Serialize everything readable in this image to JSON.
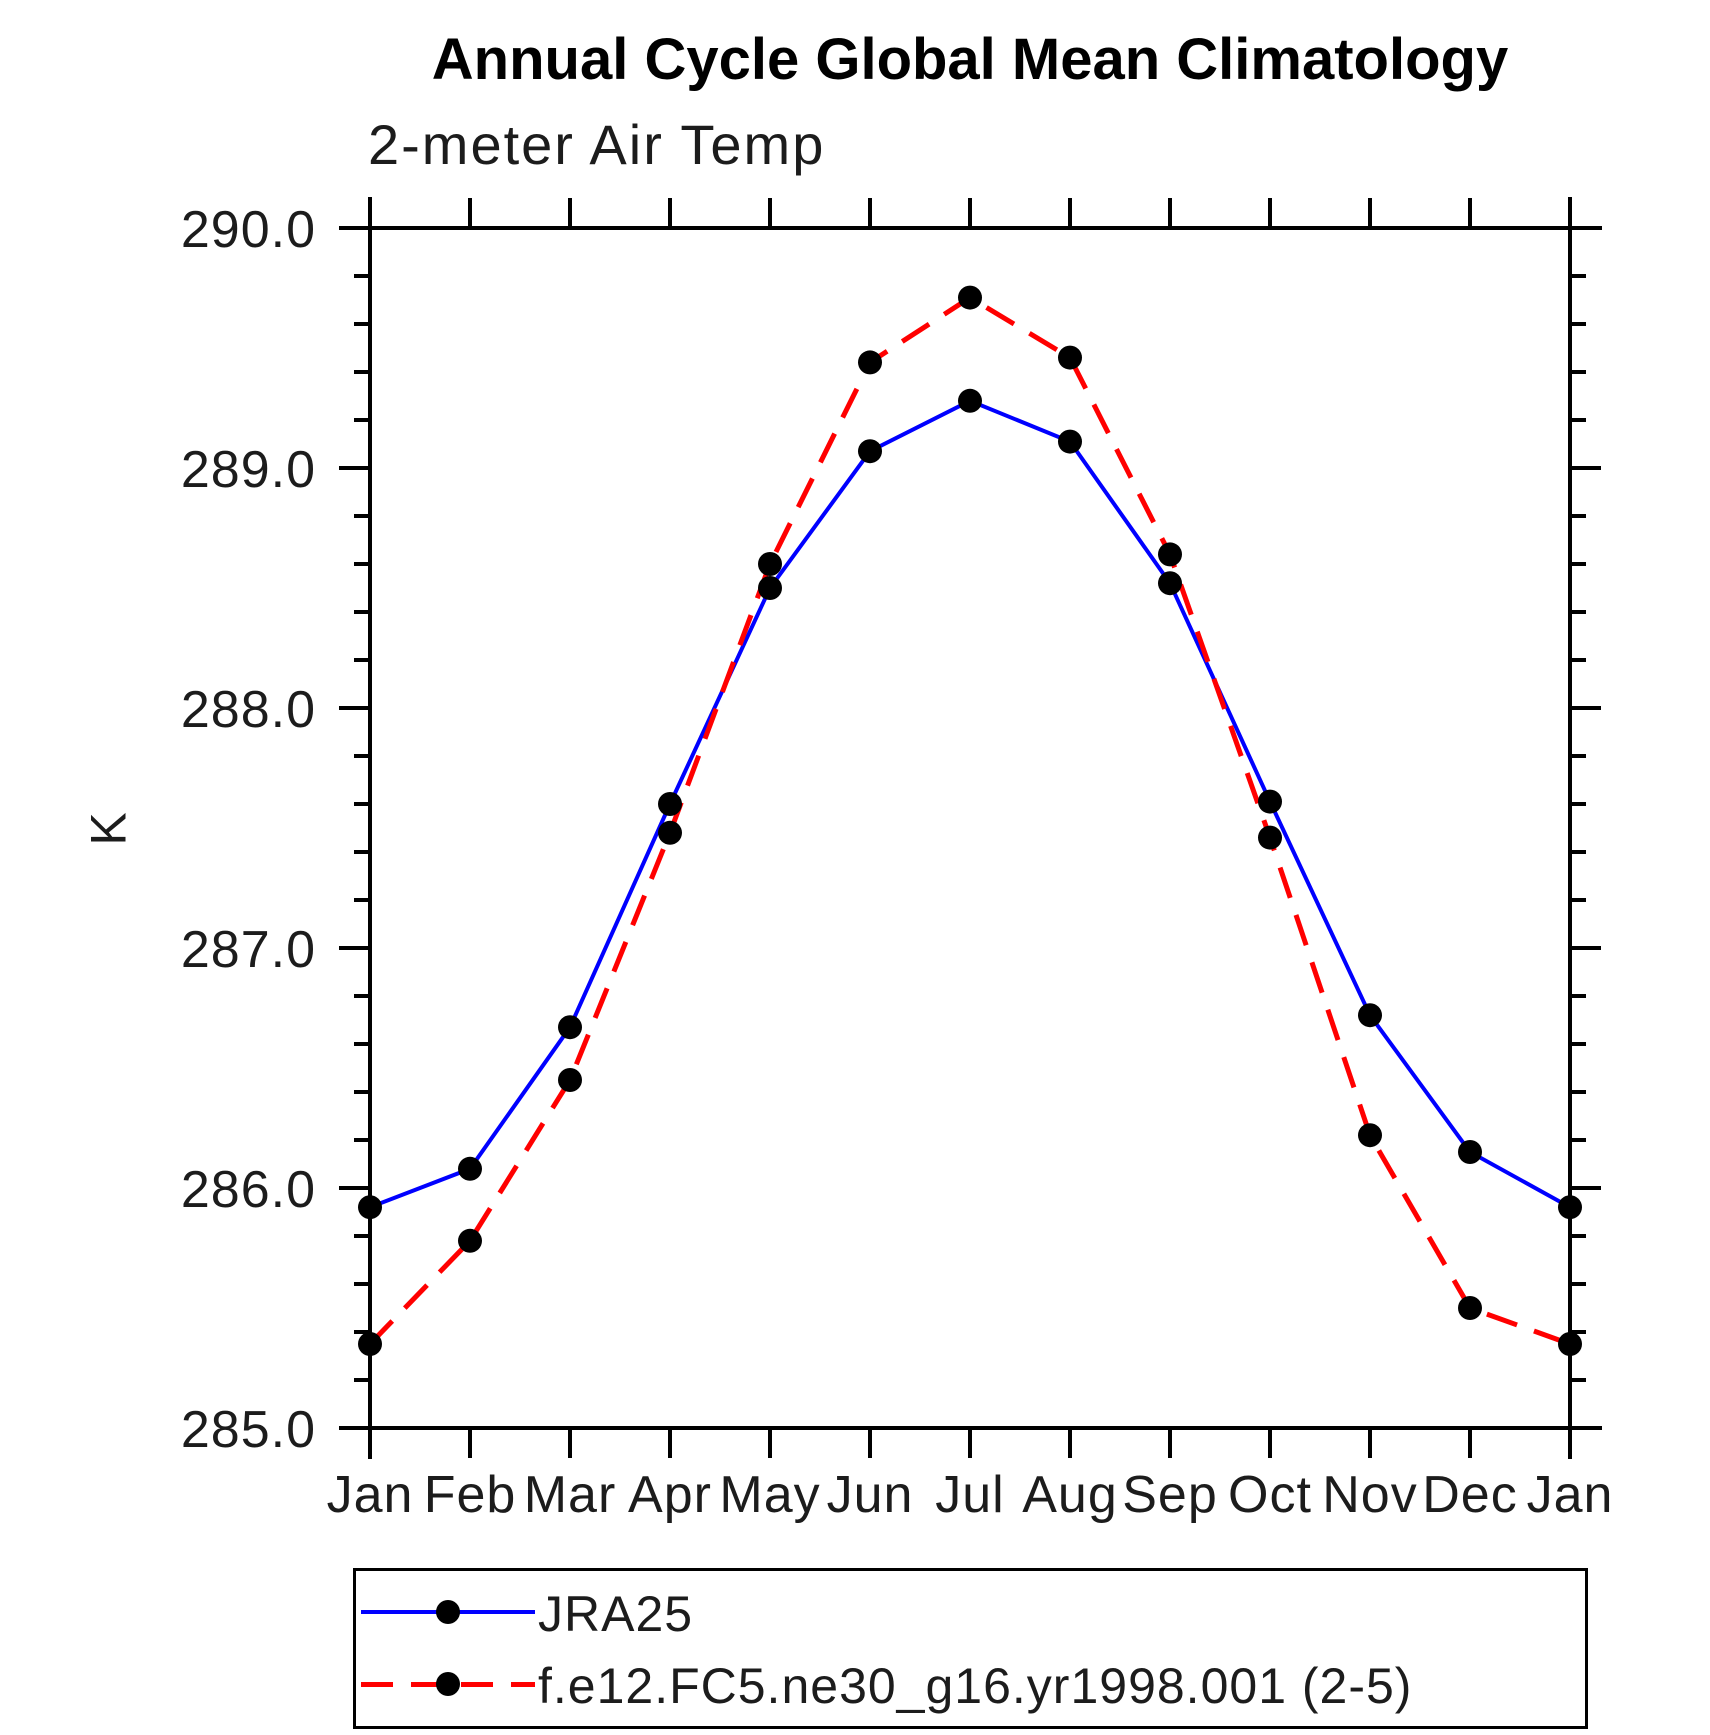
{
  "page": {
    "background_color": "#ffffff",
    "axis_color": "#000000"
  },
  "chart_data": {
    "type": "line",
    "title": "Annual Cycle Global Mean Climatology",
    "subtitle": "2-meter Air Temp",
    "ylabel": "K",
    "xlabel": "",
    "x_categories": [
      "Jan",
      "Feb",
      "Mar",
      "Apr",
      "May",
      "Jun",
      "Jul",
      "Aug",
      "Sep",
      "Oct",
      "Nov",
      "Dec",
      "Jan"
    ],
    "ylim": [
      285.0,
      290.0
    ],
    "y_major_tick_labels": [
      "290.0",
      "289.0",
      "288.0",
      "287.0",
      "286.0",
      "285.0"
    ],
    "y_major_tick_values": [
      290.0,
      289.0,
      288.0,
      287.0,
      286.0,
      285.0
    ],
    "y_minor_step": 0.2,
    "grid": false,
    "legend_position": "bottom-left-box",
    "marker": "filled-circle",
    "marker_color": "#000000",
    "series": [
      {
        "name": "JRA25",
        "color": "#0000ff",
        "line_style": "solid",
        "values": [
          285.92,
          286.08,
          286.67,
          287.6,
          288.5,
          289.07,
          289.28,
          289.11,
          288.52,
          287.61,
          286.72,
          286.15,
          285.92
        ]
      },
      {
        "name": "f.e12.FC5.ne30_g16.yr1998.001 (2-5)",
        "color": "#ff0000",
        "line_style": "dashed",
        "values": [
          285.35,
          285.78,
          286.45,
          287.48,
          288.6,
          289.44,
          289.71,
          289.46,
          288.64,
          287.46,
          286.22,
          285.5,
          285.35
        ]
      }
    ]
  }
}
